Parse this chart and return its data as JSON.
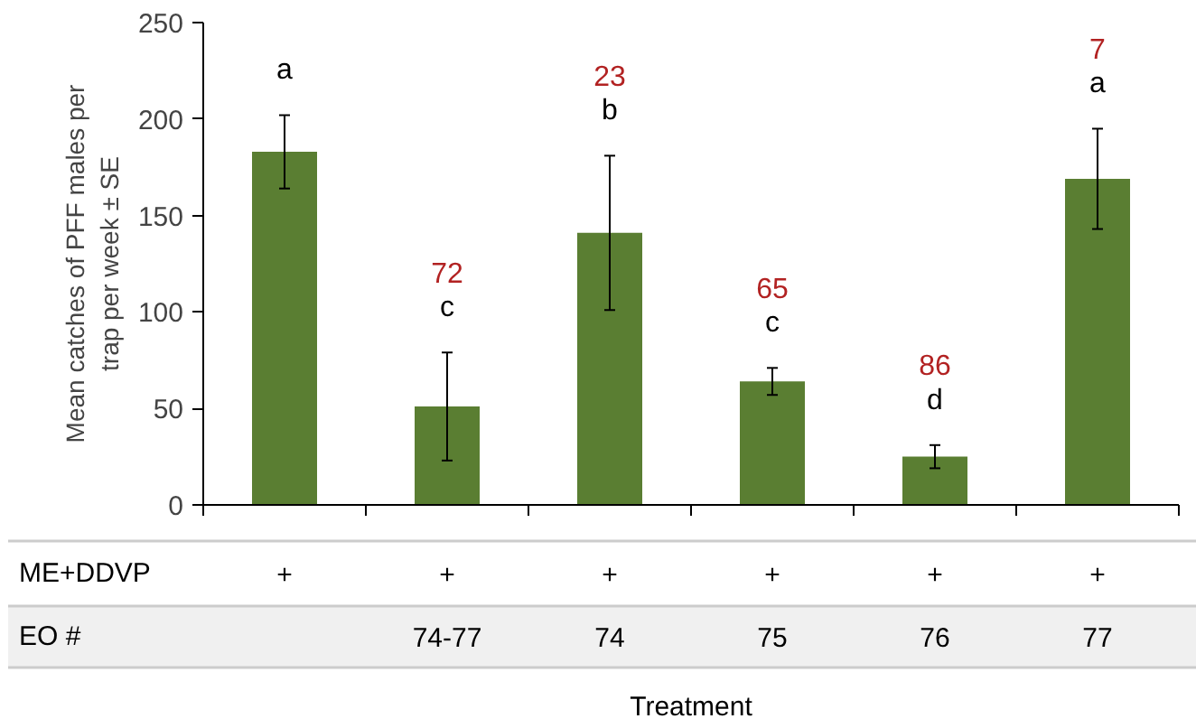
{
  "chart_data": {
    "type": "bar",
    "ylabel": "Mean catches of PFF males per\ntrap per week ± SE",
    "xlabel": "Treatment",
    "categories": [
      null,
      "74-77",
      "74",
      "75",
      "76",
      "77"
    ],
    "values": [
      183,
      51,
      141,
      64,
      25,
      169
    ],
    "errors": [
      19,
      28,
      40,
      7,
      6,
      26
    ],
    "color": "#5a7e32",
    "ylim": [
      0,
      250
    ],
    "yticks": [
      0,
      50,
      100,
      150,
      200,
      250
    ],
    "grid": false,
    "annotations": [
      "a",
      "72",
      "c",
      "23",
      "b",
      "65",
      "c",
      "86",
      "d",
      "7",
      "a",
      "ME+DDVP",
      "+",
      "+",
      "+",
      "+",
      "+",
      "+",
      "EO #"
    ]
  }
}
